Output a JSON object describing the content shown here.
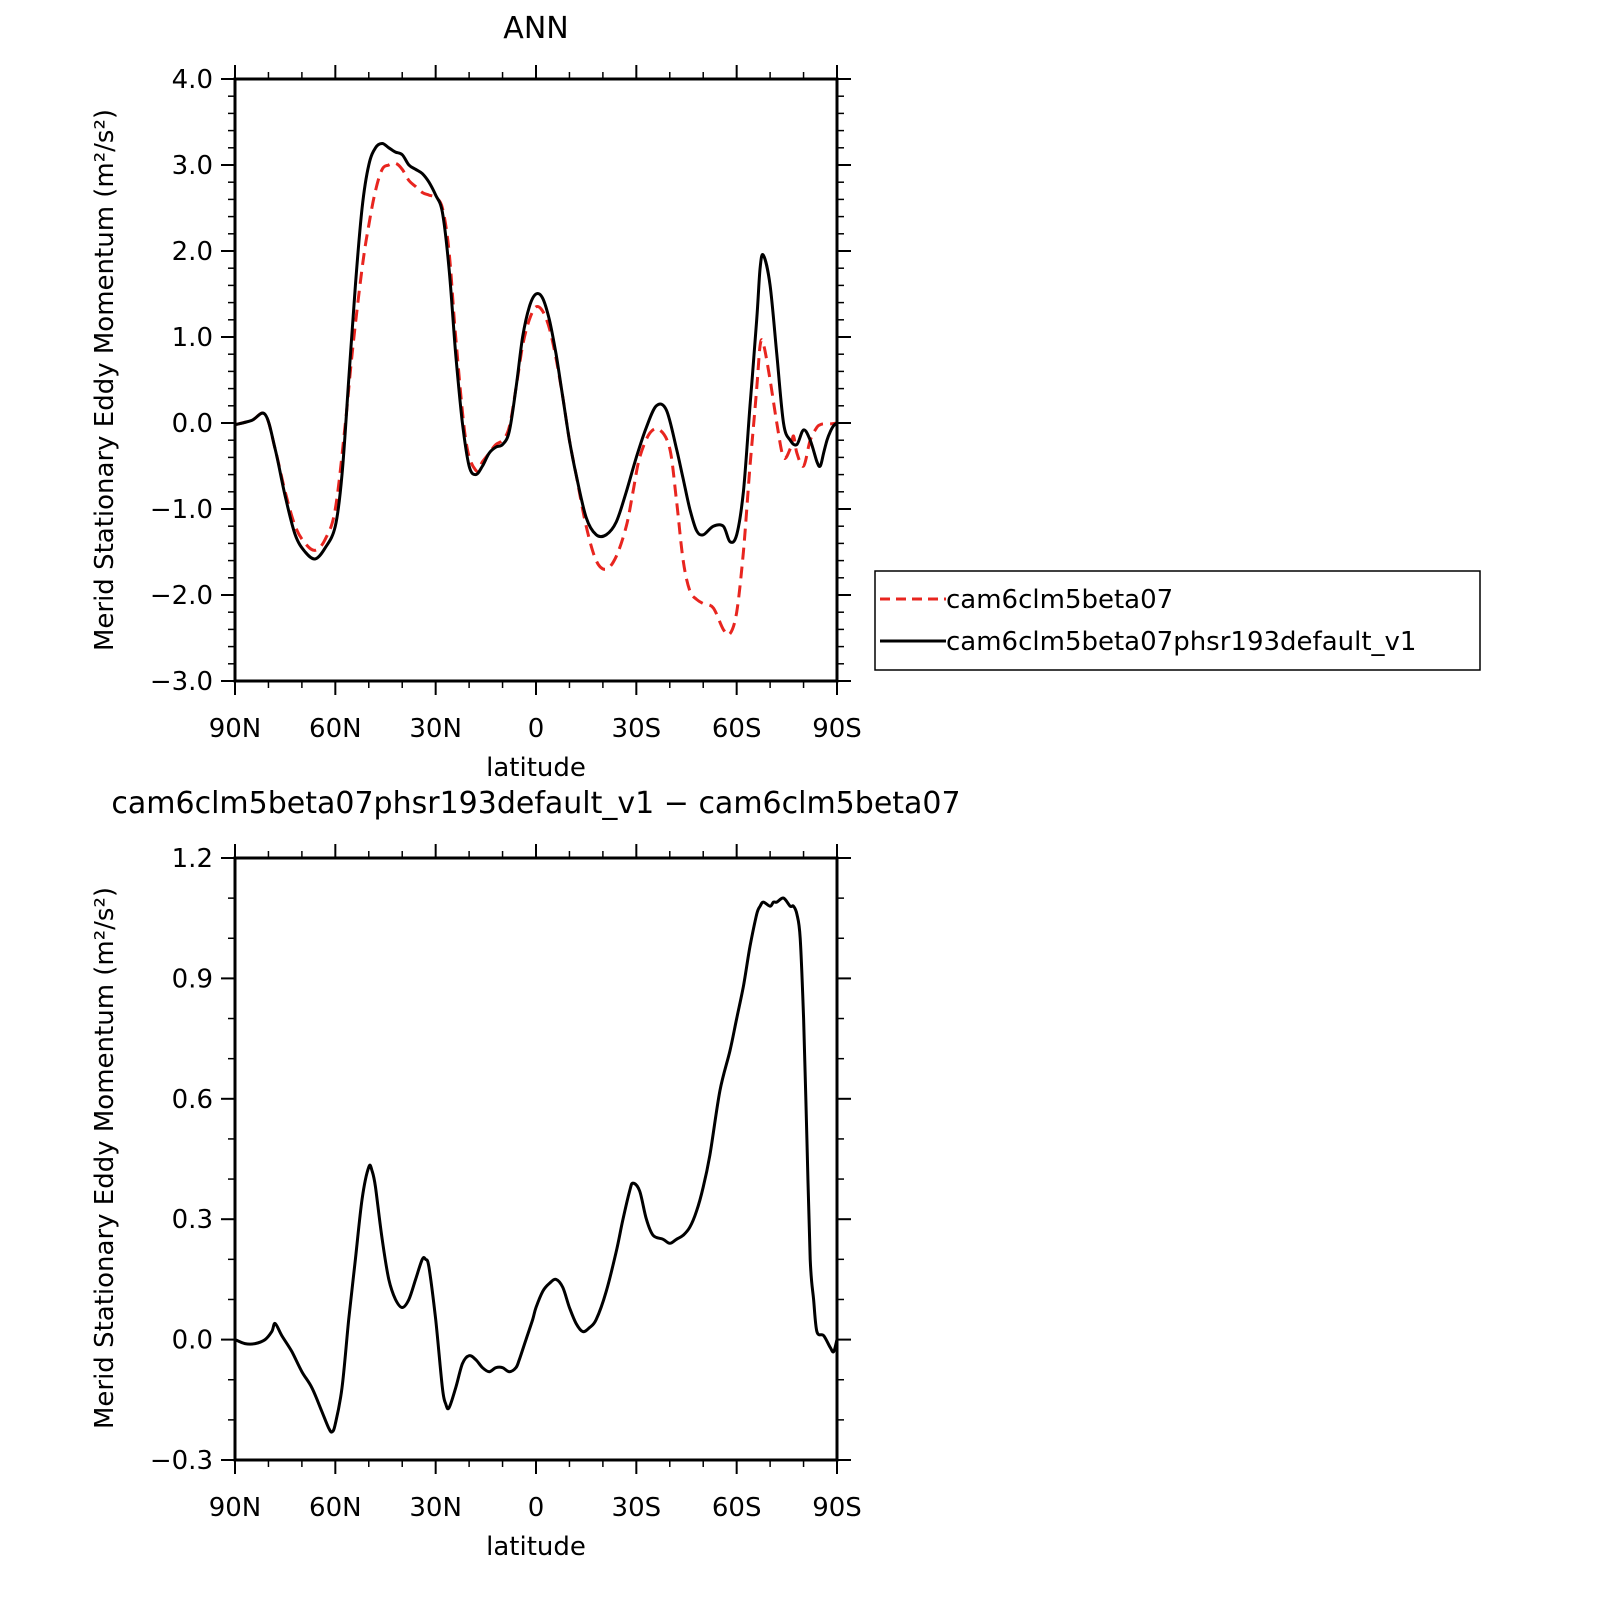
{
  "chart_data": [
    {
      "type": "line",
      "title": "ANN",
      "xlabel": "latitude",
      "ylabel": "Merid Stationary Eddy Momentum (m²/s²)",
      "xlim": [
        90,
        -90
      ],
      "ylim": [
        -3.0,
        4.0
      ],
      "x_tick_values": [
        90,
        60,
        30,
        0,
        -30,
        -60,
        -90
      ],
      "x_tick_labels": [
        "90N",
        "60N",
        "30N",
        "0",
        "30S",
        "60S",
        "90S"
      ],
      "y_tick_values": [
        -3.0,
        -2.0,
        -1.0,
        0.0,
        1.0,
        2.0,
        3.0,
        4.0
      ],
      "y_tick_labels": [
        "−3.0",
        "−2.0",
        "−1.0",
        "0.0",
        "1.0",
        "2.0",
        "3.0",
        "4.0"
      ],
      "legend_position": "right",
      "series": [
        {
          "name": "cam6clm5beta07",
          "color": "#e8251f",
          "dash": "dashed",
          "x": [
            90,
            85,
            81,
            78,
            75,
            72,
            69,
            66,
            63,
            60,
            57,
            55,
            52,
            50,
            48,
            46,
            44,
            42,
            40,
            38,
            36,
            34,
            32,
            30,
            28,
            26,
            24,
            21,
            18,
            16,
            14,
            12,
            10,
            8,
            6,
            4,
            2,
            0,
            -2,
            -4,
            -6,
            -8,
            -10,
            -12,
            -15,
            -18,
            -21,
            -24,
            -27,
            -29,
            -31,
            -34,
            -37,
            -40,
            -42,
            -44,
            -46,
            -48,
            -50,
            -53,
            -56,
            -58,
            -60,
            -62,
            -64,
            -66,
            -67,
            -68,
            -70,
            -72,
            -74,
            -76,
            -77,
            -78,
            -80,
            -82,
            -84,
            -85,
            -86,
            -88,
            -90
          ],
          "y": [
            -0.02,
            0.03,
            0.1,
            -0.3,
            -0.8,
            -1.2,
            -1.4,
            -1.48,
            -1.35,
            -1.0,
            0.0,
            0.8,
            1.8,
            2.3,
            2.7,
            2.95,
            3.0,
            3.02,
            2.95,
            2.82,
            2.75,
            2.68,
            2.65,
            2.62,
            2.5,
            2.0,
            1.0,
            -0.2,
            -0.55,
            -0.45,
            -0.35,
            -0.25,
            -0.2,
            -0.05,
            0.4,
            0.9,
            1.2,
            1.35,
            1.3,
            1.1,
            0.75,
            0.3,
            -0.2,
            -0.6,
            -1.2,
            -1.6,
            -1.7,
            -1.55,
            -1.2,
            -0.8,
            -0.4,
            -0.12,
            -0.08,
            -0.3,
            -0.9,
            -1.6,
            -1.95,
            -2.05,
            -2.1,
            -2.15,
            -2.4,
            -2.45,
            -2.2,
            -1.5,
            -0.5,
            0.4,
            0.9,
            0.92,
            0.5,
            0.0,
            -0.4,
            -0.3,
            -0.15,
            -0.35,
            -0.5,
            -0.2,
            -0.05,
            -0.02,
            -0.01,
            -0.01,
            0.0
          ]
        },
        {
          "name": "cam6clm5beta07phsr193default_v1",
          "color": "#000000",
          "dash": "solid",
          "x": [
            90,
            85,
            81,
            78,
            75,
            72,
            69,
            66,
            63,
            60,
            58,
            56,
            54,
            52,
            50,
            48,
            46,
            44,
            42,
            40,
            38,
            36,
            34,
            32,
            30,
            28,
            26,
            24,
            22,
            20,
            18,
            16,
            14,
            12,
            10,
            8,
            6,
            4,
            2,
            0,
            -2,
            -4,
            -6,
            -8,
            -10,
            -12,
            -15,
            -18,
            -21,
            -24,
            -27,
            -30,
            -33,
            -36,
            -39,
            -42,
            -44,
            -46,
            -48,
            -50,
            -53,
            -56,
            -58,
            -60,
            -62,
            -64,
            -66,
            -67,
            -68,
            -70,
            -72,
            -74,
            -76,
            -78,
            -80,
            -82,
            -84,
            -85,
            -86,
            -87,
            -88,
            -89,
            -90
          ],
          "y": [
            -0.02,
            0.03,
            0.1,
            -0.3,
            -0.85,
            -1.3,
            -1.5,
            -1.58,
            -1.45,
            -1.2,
            -0.6,
            0.5,
            1.6,
            2.5,
            3.0,
            3.2,
            3.25,
            3.2,
            3.15,
            3.12,
            3.0,
            2.95,
            2.9,
            2.8,
            2.65,
            2.45,
            1.8,
            0.8,
            0.0,
            -0.5,
            -0.6,
            -0.5,
            -0.35,
            -0.28,
            -0.25,
            -0.1,
            0.4,
            1.0,
            1.35,
            1.5,
            1.45,
            1.2,
            0.8,
            0.3,
            -0.2,
            -0.6,
            -1.1,
            -1.3,
            -1.3,
            -1.15,
            -0.8,
            -0.4,
            -0.05,
            0.2,
            0.15,
            -0.3,
            -0.65,
            -1.0,
            -1.25,
            -1.3,
            -1.2,
            -1.2,
            -1.38,
            -1.3,
            -0.8,
            0.2,
            1.2,
            1.8,
            1.95,
            1.6,
            0.8,
            0.0,
            -0.2,
            -0.25,
            -0.08,
            -0.2,
            -0.45,
            -0.5,
            -0.35,
            -0.2,
            -0.1,
            -0.03,
            0.0
          ]
        }
      ]
    },
    {
      "type": "line",
      "title": "cam6clm5beta07phsr193default_v1 − cam6clm5beta07",
      "xlabel": "latitude",
      "ylabel": "Merid Stationary Eddy Momentum (m²/s²)",
      "xlim": [
        90,
        -90
      ],
      "ylim": [
        -0.3,
        1.2
      ],
      "x_tick_values": [
        90,
        60,
        30,
        0,
        -30,
        -60,
        -90
      ],
      "x_tick_labels": [
        "90N",
        "60N",
        "30N",
        "0",
        "30S",
        "60S",
        "90S"
      ],
      "y_tick_values": [
        -0.3,
        0.0,
        0.3,
        0.6,
        0.9,
        1.2
      ],
      "y_tick_labels": [
        "−0.3",
        "0.0",
        "0.3",
        "0.6",
        "0.9",
        "1.2"
      ],
      "series": [
        {
          "color": "#000000",
          "dash": "solid",
          "x": [
            90,
            87,
            84,
            81,
            79,
            78,
            76,
            73,
            70,
            67,
            64,
            62,
            61,
            60,
            58,
            56,
            54,
            52,
            50,
            49,
            48,
            46,
            44,
            42,
            40,
            38,
            36,
            34,
            33,
            32,
            30,
            28,
            27,
            26,
            24,
            22,
            20,
            18,
            16,
            14,
            12,
            10,
            8,
            6,
            5,
            3,
            1,
            0,
            -2,
            -4,
            -6,
            -8,
            -10,
            -12,
            -14,
            -16,
            -18,
            -21,
            -24,
            -26,
            -28,
            -29,
            -31,
            -33,
            -35,
            -38,
            -40,
            -42,
            -44,
            -46,
            -48,
            -50,
            -52,
            -55,
            -58,
            -60,
            -62,
            -64,
            -66,
            -67,
            -68,
            -70,
            -71,
            -72,
            -74,
            -76,
            -77,
            -78,
            -79,
            -80,
            -81,
            -82,
            -83,
            -84,
            -86,
            -88,
            -89,
            -90
          ],
          "y": [
            0.0,
            -0.01,
            -0.01,
            0.0,
            0.02,
            0.04,
            0.01,
            -0.03,
            -0.08,
            -0.12,
            -0.18,
            -0.22,
            -0.23,
            -0.21,
            -0.12,
            0.05,
            0.2,
            0.35,
            0.43,
            0.42,
            0.38,
            0.25,
            0.15,
            0.1,
            0.08,
            0.1,
            0.15,
            0.2,
            0.2,
            0.18,
            0.05,
            -0.12,
            -0.16,
            -0.17,
            -0.12,
            -0.06,
            -0.04,
            -0.05,
            -0.07,
            -0.08,
            -0.07,
            -0.07,
            -0.08,
            -0.07,
            -0.05,
            0.0,
            0.05,
            0.08,
            0.12,
            0.14,
            0.15,
            0.13,
            0.08,
            0.04,
            0.02,
            0.03,
            0.05,
            0.12,
            0.22,
            0.3,
            0.37,
            0.39,
            0.37,
            0.3,
            0.26,
            0.25,
            0.24,
            0.25,
            0.26,
            0.28,
            0.32,
            0.38,
            0.46,
            0.62,
            0.72,
            0.8,
            0.88,
            0.98,
            1.06,
            1.08,
            1.09,
            1.08,
            1.09,
            1.09,
            1.1,
            1.08,
            1.08,
            1.06,
            1.0,
            0.8,
            0.5,
            0.2,
            0.1,
            0.02,
            0.01,
            -0.02,
            -0.03,
            0.0
          ]
        }
      ]
    }
  ]
}
